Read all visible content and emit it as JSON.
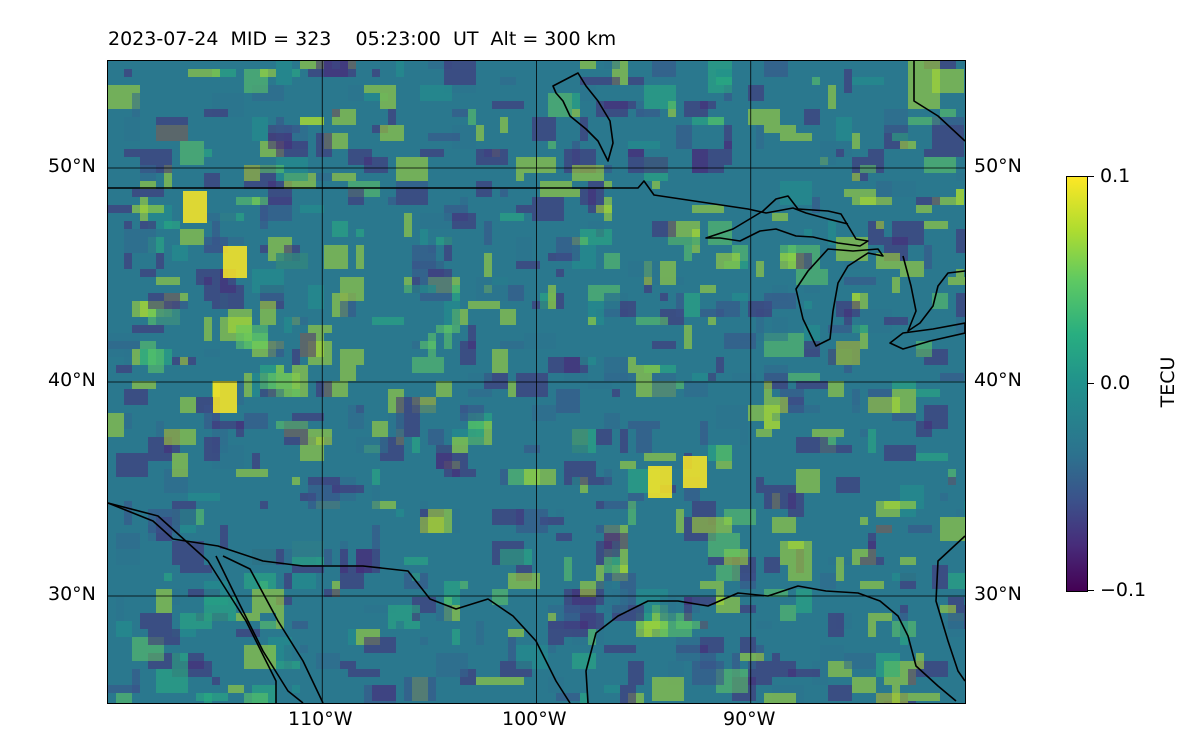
{
  "title": "2023-07-24  MID = 323    05:23:00  UT  Alt = 300 km",
  "map": {
    "lon_range": [
      -120,
      -80
    ],
    "lat_range": [
      25,
      55
    ],
    "lat_ticks": [
      {
        "value": 50,
        "label": "50°N"
      },
      {
        "value": 40,
        "label": "40°N"
      },
      {
        "value": 30,
        "label": "30°N"
      }
    ],
    "lon_ticks": [
      {
        "value": -110,
        "label": "110°W"
      },
      {
        "value": -100,
        "label": "100°W"
      },
      {
        "value": -90,
        "label": "90°W"
      }
    ],
    "grid": true,
    "colormap": "viridis",
    "background_color": "#2a788e",
    "features": [
      "coastlines",
      "us-canada-border",
      "us-mexico-border",
      "great-lakes"
    ]
  },
  "colorbar": {
    "label": "TECU",
    "min": -0.1,
    "max": 0.1,
    "ticks": [
      "0.1",
      "0.0",
      "−0.1"
    ]
  }
}
